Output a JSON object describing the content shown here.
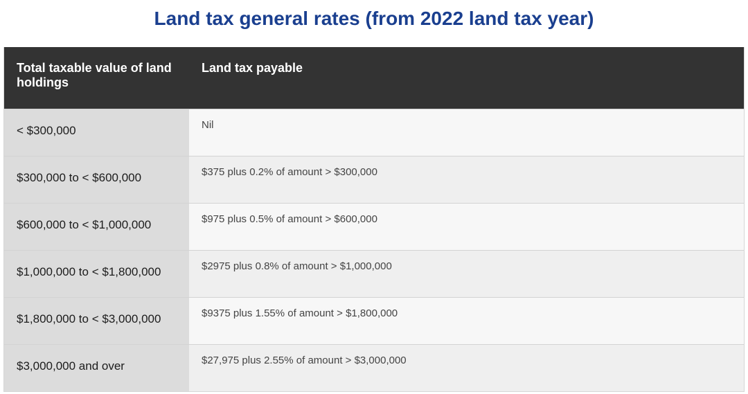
{
  "title": "Land tax general rates (from 2022 land tax year)",
  "table": {
    "headers": [
      "Total taxable value of land holdings",
      "Land tax payable"
    ],
    "rows": [
      {
        "value": "< $300,000",
        "payable": "Nil"
      },
      {
        "value": "$300,000 to < $600,000",
        "payable": "$375 plus 0.2% of amount > $300,000"
      },
      {
        "value": "$600,000 to < $1,000,000",
        "payable": "$975 plus 0.5% of amount > $600,000"
      },
      {
        "value": "$1,000,000 to < $1,800,000",
        "payable": "$2975 plus 0.8% of amount > $1,000,000"
      },
      {
        "value": "$1,800,000 to < $3,000,000",
        "payable": "$9375 plus 1.55% of amount > $1,800,000"
      },
      {
        "value": "$3,000,000 and over",
        "payable": "$27,975 plus 2.55% of amount > $3,000,000"
      }
    ]
  },
  "colors": {
    "title": "#1a3f8f",
    "header_bg": "#333333",
    "value_cell_bg": "#dcdcdc"
  }
}
